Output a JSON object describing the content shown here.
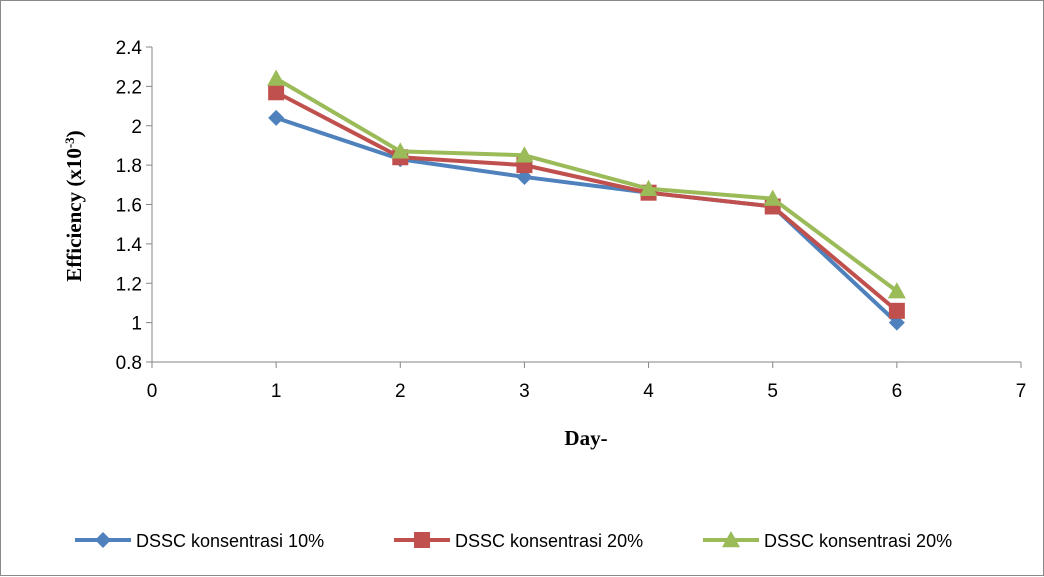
{
  "chart_data": {
    "type": "line",
    "xlabel": "Day-",
    "ylabel_main": "Efficiency (x10",
    "ylabel_sup": "-3",
    "ylabel_end": ")",
    "xlim": [
      0,
      7
    ],
    "ylim": [
      0.8,
      2.4
    ],
    "x_ticks": [
      "0",
      "1",
      "2",
      "3",
      "4",
      "5",
      "6",
      "7"
    ],
    "y_ticks": [
      "0.8",
      "1",
      "1.2",
      "1.4",
      "1.6",
      "1.8",
      "2",
      "2.2",
      "2.4"
    ],
    "grid": false,
    "legend_position": "bottom",
    "x": [
      1,
      2,
      3,
      4,
      5,
      6
    ],
    "series": [
      {
        "name": "DSSC konsentrasi 10%",
        "values": [
          2.04,
          1.83,
          1.74,
          1.66,
          1.59,
          1.0
        ],
        "color": "#4F81BD",
        "marker": "diamond"
      },
      {
        "name": "DSSC konsentrasi 20%",
        "values": [
          2.17,
          1.84,
          1.8,
          1.66,
          1.59,
          1.06
        ],
        "color": "#C0504D",
        "marker": "square"
      },
      {
        "name": "DSSC konsentrasi 20%",
        "values": [
          2.24,
          1.87,
          1.85,
          1.68,
          1.63,
          1.16
        ],
        "color": "#9BBB59",
        "marker": "triangle"
      }
    ]
  }
}
